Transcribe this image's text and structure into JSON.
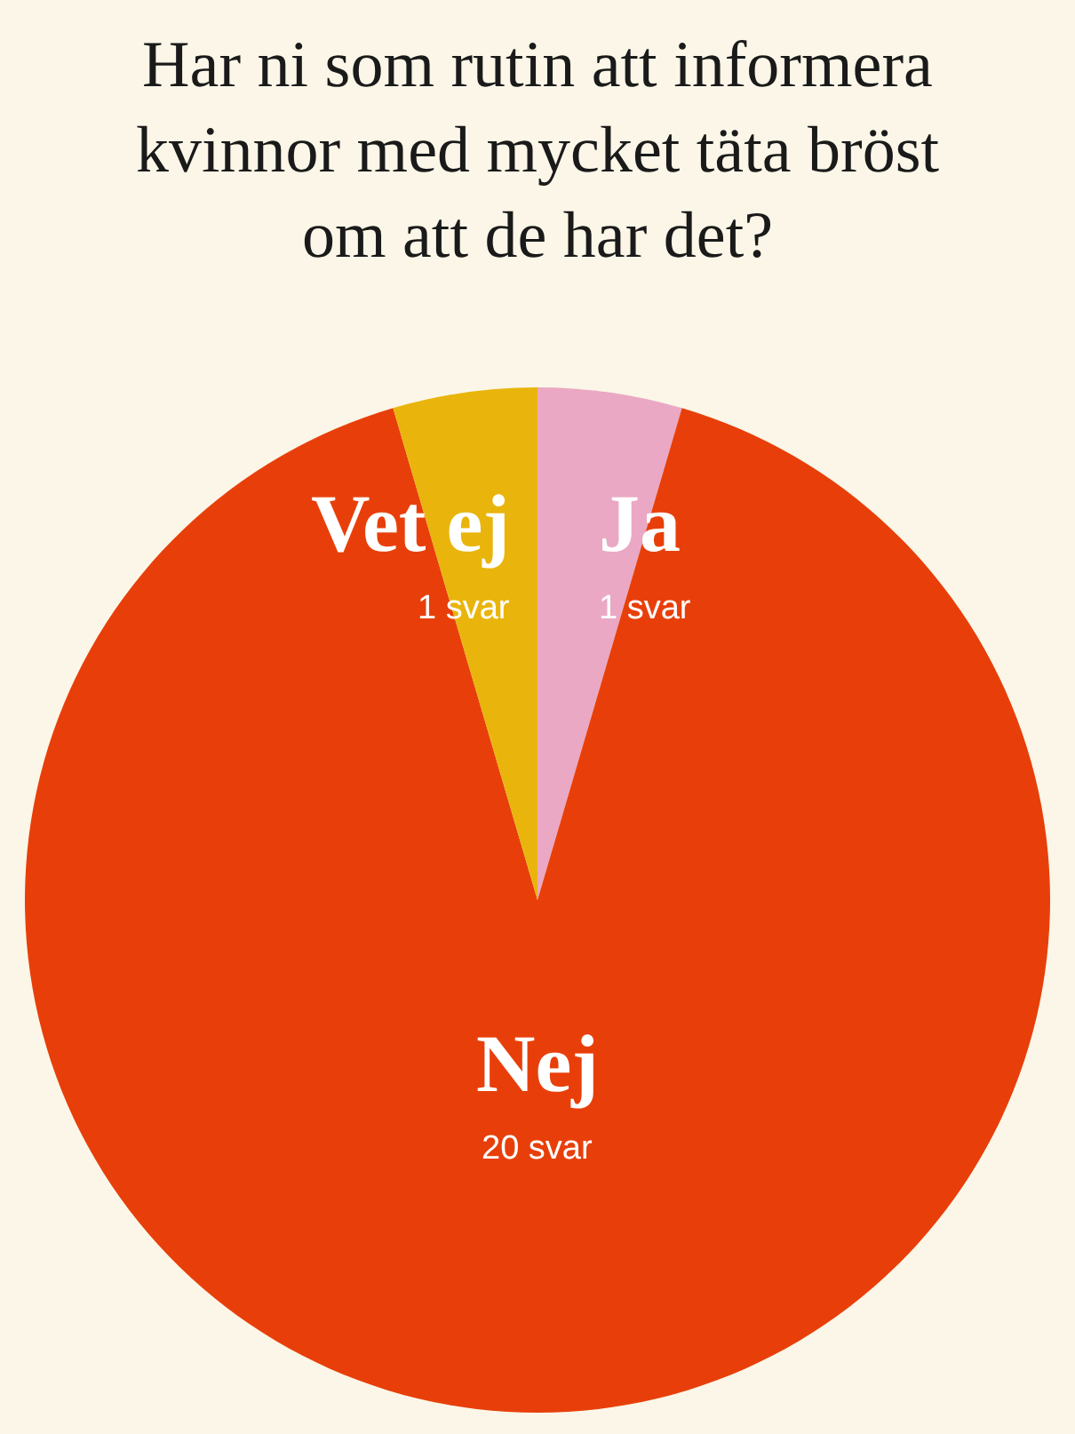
{
  "chart_data": {
    "type": "pie",
    "title": "Har ni som rutin att informera\nkvinnor med mycket täta bröst\nom att de har det?",
    "categories": [
      "Ja",
      "Nej",
      "Vet ej"
    ],
    "values": [
      1,
      20,
      1
    ],
    "colors": [
      "#eaa8c4",
      "#e83f0a",
      "#e9b50c"
    ],
    "value_labels": [
      "1 svar",
      "20 svar",
      "1 svar"
    ],
    "legend": false
  }
}
